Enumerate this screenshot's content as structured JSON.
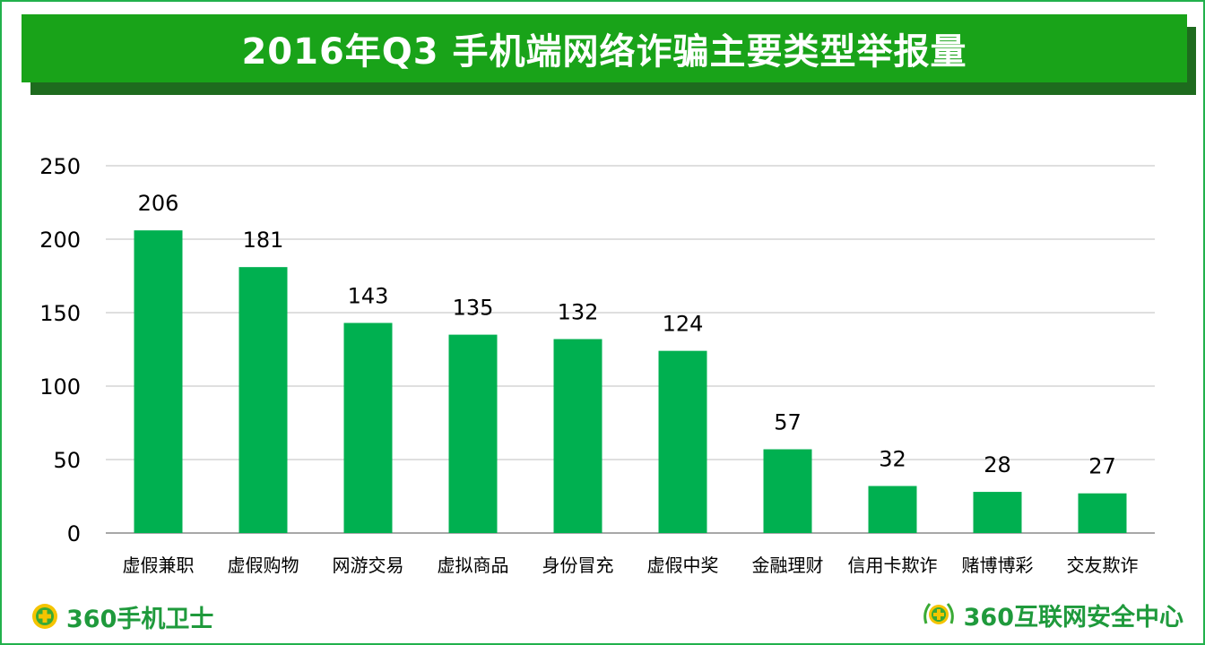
{
  "title": "2016年Q3 手机端网络诈骗主要类型举报量",
  "colors": {
    "bar": "#00b050",
    "title_bg": "#19a319",
    "title_shadow": "#1e6b1e",
    "frame": "#22b14c",
    "brand": "#1f9a3c"
  },
  "brand_left": {
    "icon": "shield-plus-icon",
    "text": "360手机卫士"
  },
  "brand_right": {
    "icon": "laurel-shield-icon",
    "text": "360互联网安全中心"
  },
  "chart_data": {
    "type": "bar",
    "title": "2016年Q3 手机端网络诈骗主要类型举报量",
    "categories": [
      "虚假兼职",
      "虚假购物",
      "网游交易",
      "虚拟商品",
      "身份冒充",
      "虚假中奖",
      "金融理财",
      "信用卡欺诈",
      "赌博博彩",
      "交友欺诈"
    ],
    "values": [
      206,
      181,
      143,
      135,
      132,
      124,
      57,
      32,
      28,
      27
    ],
    "ylim": [
      0,
      250
    ],
    "yticks": [
      0,
      50,
      100,
      150,
      200,
      250
    ],
    "grid": true,
    "data_labels": true,
    "legend": "none"
  }
}
